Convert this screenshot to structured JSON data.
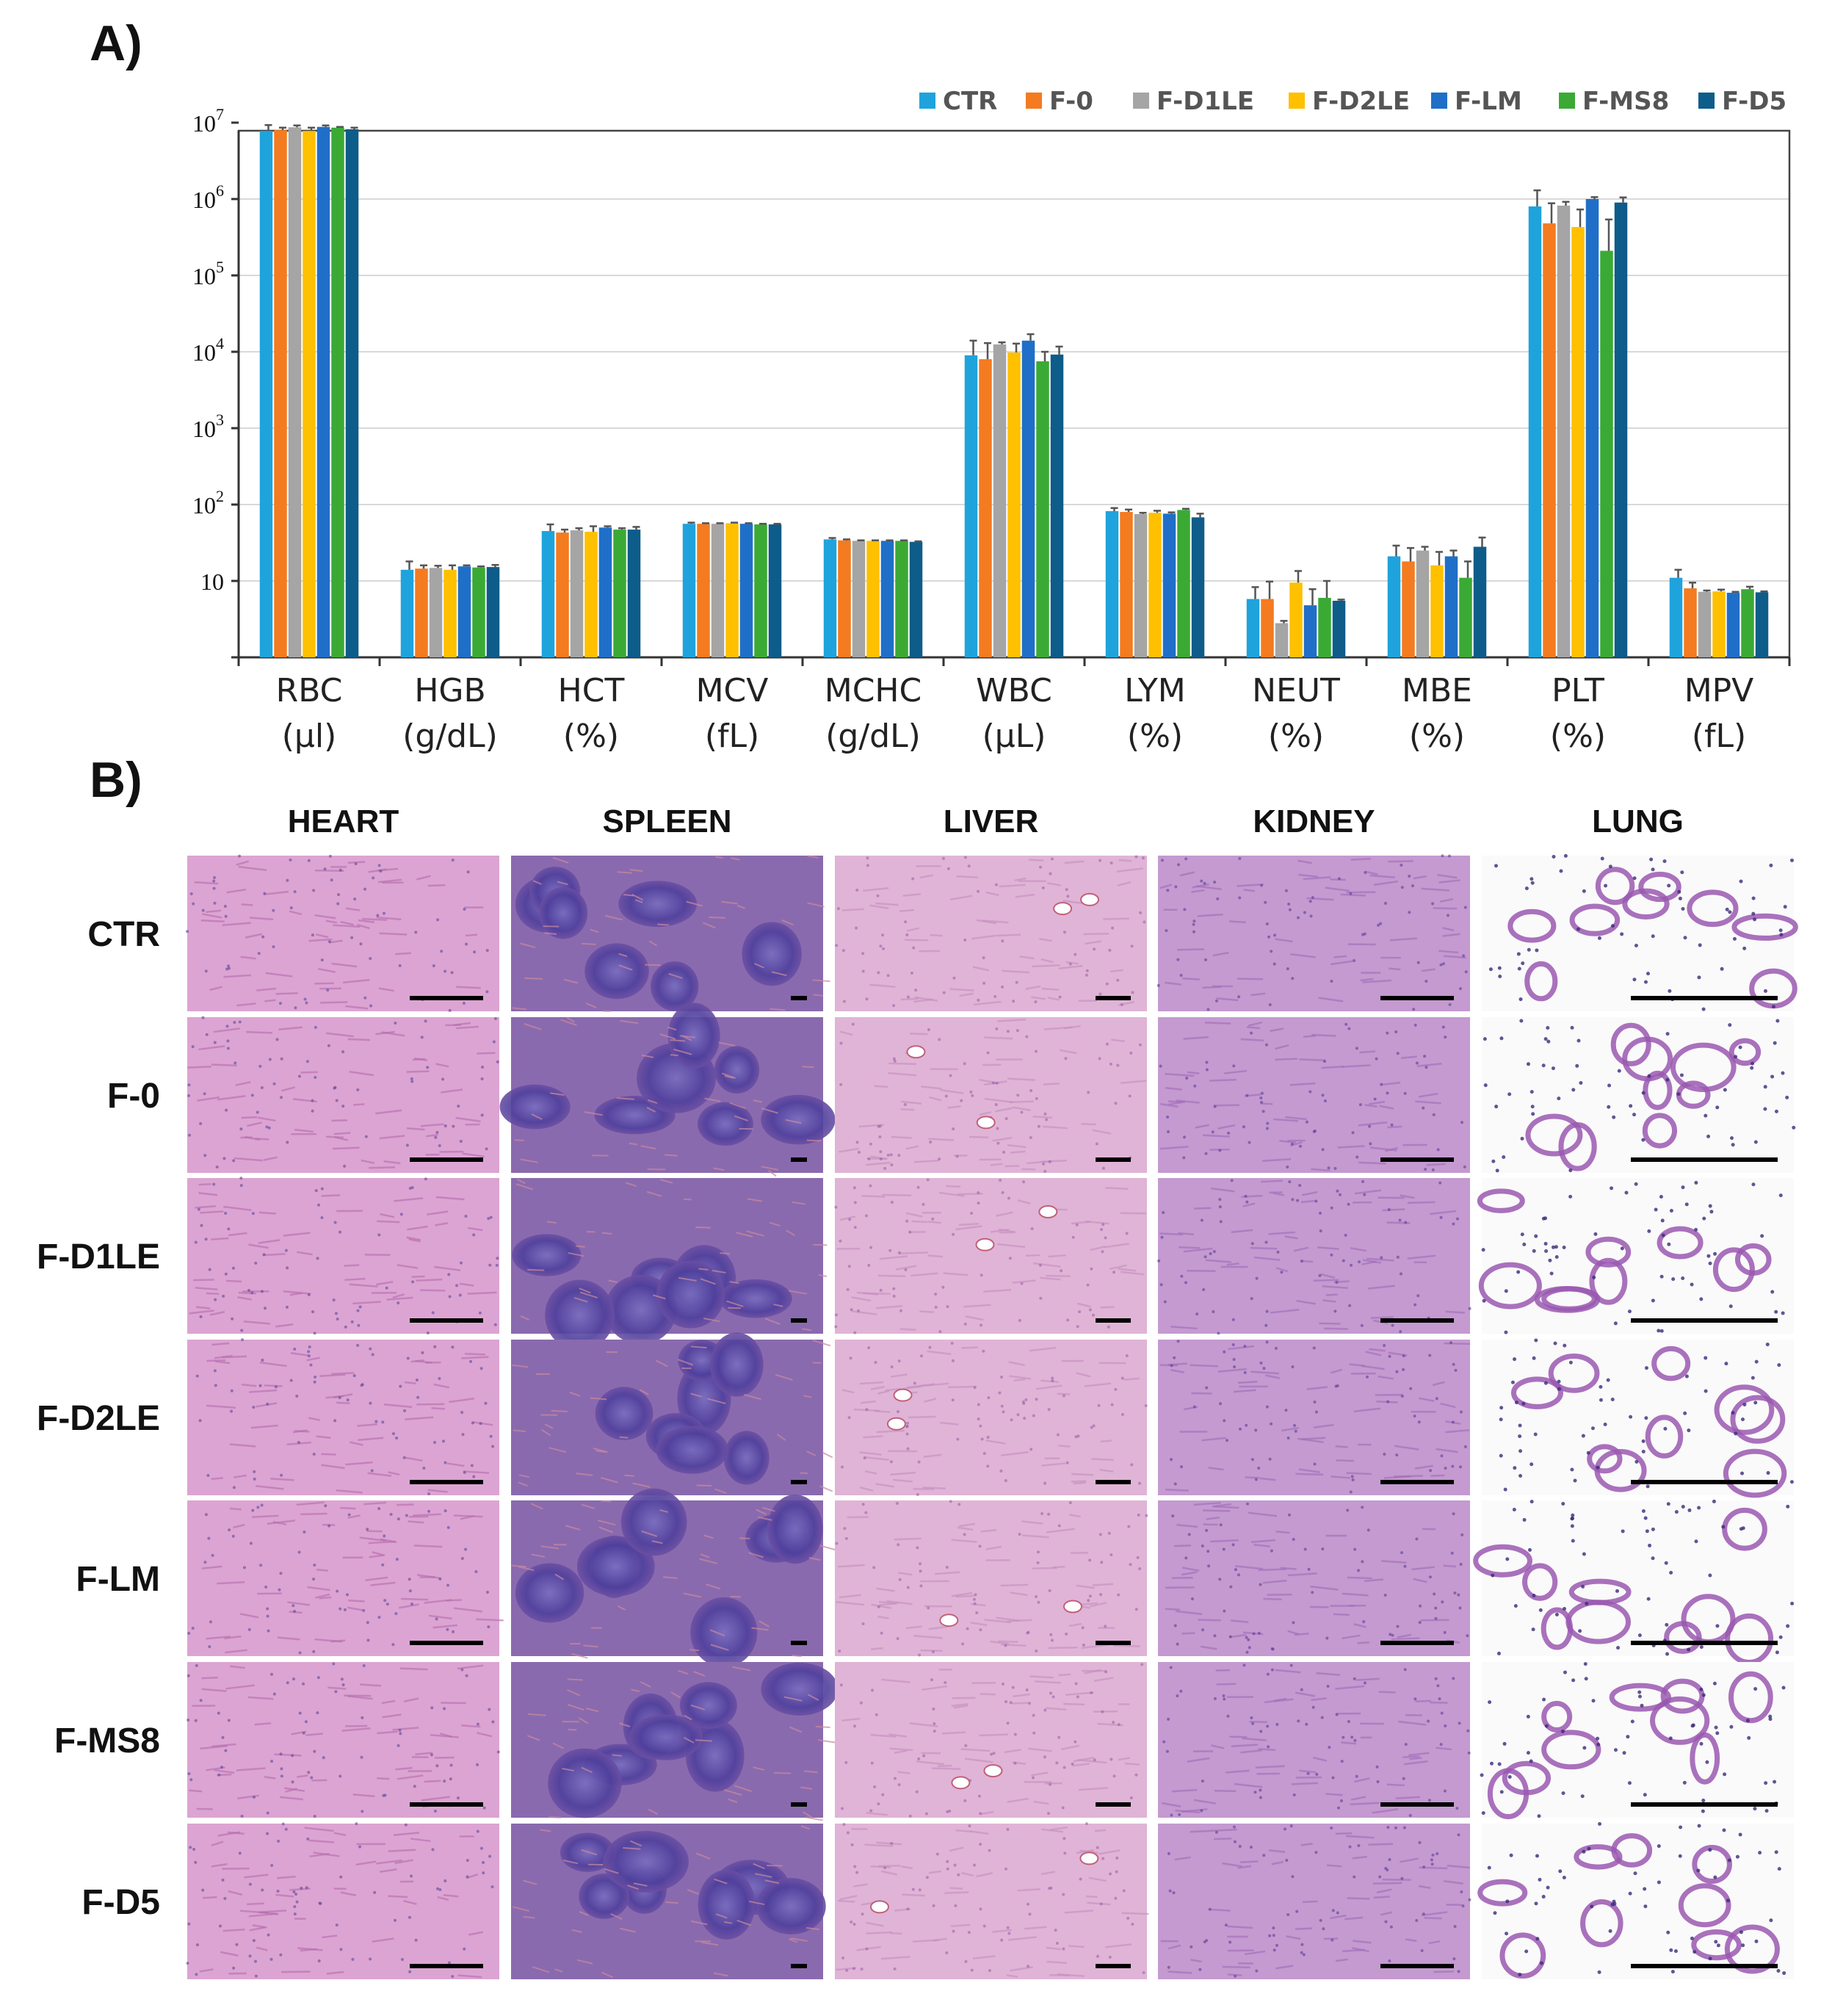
{
  "panel_a_label": "A)",
  "panel_b_label": "B)",
  "chart_data": {
    "type": "bar",
    "yscale": "log",
    "ylim": [
      1,
      10000000
    ],
    "grid": true,
    "legend_position": "top-right",
    "ytick_labels": [
      {
        "value": 10,
        "base": "10",
        "exp": ""
      },
      {
        "value": 100,
        "base": "10",
        "exp": "2"
      },
      {
        "value": 1000,
        "base": "10",
        "exp": "3"
      },
      {
        "value": 10000,
        "base": "10",
        "exp": "4"
      },
      {
        "value": 100000,
        "base": "10",
        "exp": "5"
      },
      {
        "value": 1000000,
        "base": "10",
        "exp": "6"
      },
      {
        "value": 10000000,
        "base": "10",
        "exp": "7"
      }
    ],
    "categories": [
      {
        "name": "RBC",
        "unit": "(µl)"
      },
      {
        "name": "HGB",
        "unit": "(g/dL)"
      },
      {
        "name": "HCT",
        "unit": "(%)"
      },
      {
        "name": "MCV",
        "unit": "(fL)"
      },
      {
        "name": "MCHC",
        "unit": "(g/dL)"
      },
      {
        "name": "WBC",
        "unit": "(µL)"
      },
      {
        "name": "LYM",
        "unit": "(%)"
      },
      {
        "name": "NEUT",
        "unit": "(%)"
      },
      {
        "name": "MBE",
        "unit": "(%)"
      },
      {
        "name": "PLT",
        "unit": "(%)"
      },
      {
        "name": "MPV",
        "unit": "(fL)"
      }
    ],
    "series": [
      {
        "name": "CTR",
        "color": "#1fa3dc",
        "values": [
          7800000,
          14,
          45,
          56,
          35,
          9000,
          82,
          5.8,
          21,
          800000,
          11
        ],
        "errors": [
          1500000,
          4,
          10,
          2,
          1.5,
          5000,
          8,
          2.5,
          8,
          500000,
          3
        ]
      },
      {
        "name": "F-0",
        "color": "#f47b20",
        "values": [
          8000000,
          14.5,
          43,
          56,
          34,
          8000,
          80,
          5.8,
          18,
          480000,
          8
        ],
        "errors": [
          600000,
          1.5,
          4,
          1,
          1,
          5000,
          6,
          4,
          9,
          400000,
          1.5
        ]
      },
      {
        "name": "F-D1LE",
        "color": "#a5a5a5",
        "values": [
          8700000,
          14.8,
          46,
          56,
          33.5,
          12500,
          75,
          2.8,
          25,
          820000,
          7.2
        ],
        "errors": [
          500000,
          1,
          3,
          1,
          0.5,
          800,
          3,
          0.2,
          3,
          100000,
          0.3
        ]
      },
      {
        "name": "F-D2LE",
        "color": "#ffc000",
        "values": [
          7800000,
          14,
          44,
          57,
          33.5,
          9800,
          78,
          9.5,
          16,
          430000,
          7.3
        ],
        "errors": [
          800000,
          2,
          8,
          1,
          0.5,
          3000,
          5,
          4,
          8,
          300000,
          0.4
        ]
      },
      {
        "name": "F-LM",
        "color": "#1f6fc8",
        "values": [
          8800000,
          15.5,
          50,
          56,
          33.5,
          14000,
          76,
          4.8,
          21,
          1000000,
          7
        ],
        "errors": [
          400000,
          0.5,
          2,
          1,
          0.5,
          3000,
          3,
          3,
          4,
          60000,
          0.2
        ]
      },
      {
        "name": "F-MS8",
        "color": "#3aaa35",
        "values": [
          8600000,
          15,
          47,
          55,
          33.5,
          7500,
          85,
          6,
          11,
          210000,
          7.8
        ],
        "errors": [
          200000,
          0.5,
          2,
          1,
          0.5,
          2500,
          3,
          4,
          7,
          330000,
          0.6
        ]
      },
      {
        "name": "F-D5",
        "color": "#0e5c8a",
        "values": [
          8200000,
          15.2,
          47,
          55,
          32.5,
          9200,
          68,
          5.5,
          28,
          900000,
          7.1
        ],
        "errors": [
          400000,
          1,
          4,
          1,
          0.5,
          2500,
          8,
          0.2,
          9,
          150000,
          0.2
        ]
      }
    ]
  },
  "histology": {
    "columns": [
      "HEART",
      "SPLEEN",
      "LIVER",
      "KIDNEY",
      "LUNG"
    ],
    "rows": [
      "CTR",
      "F-0",
      "F-D1LE",
      "F-D2LE",
      "F-LM",
      "F-MS8",
      "F-D5"
    ]
  }
}
